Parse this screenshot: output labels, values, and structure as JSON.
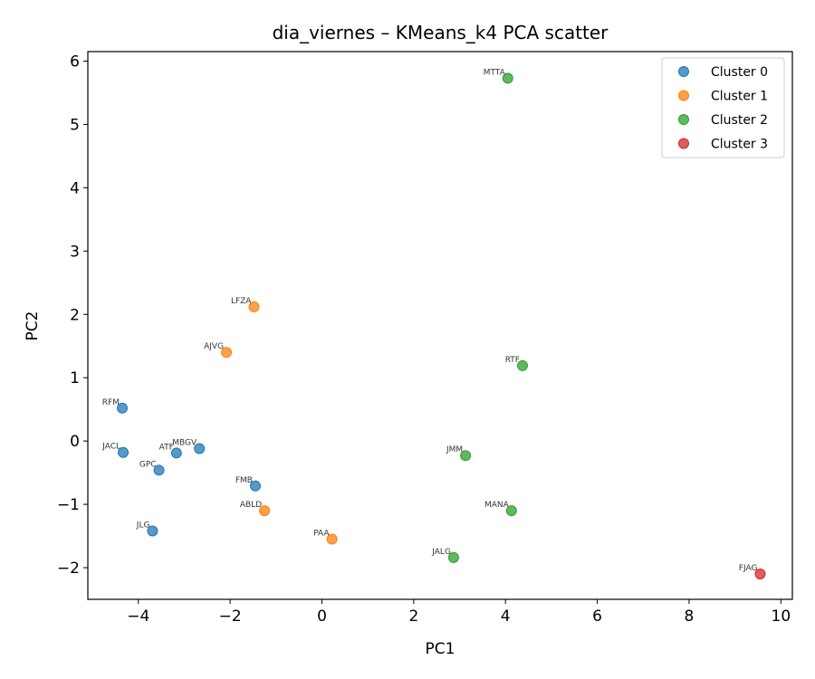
{
  "chart_data": {
    "type": "scatter",
    "title": "dia_viernes – KMeans_k4 PCA scatter",
    "xlabel": "PC1",
    "ylabel": "PC2",
    "xlim": [
      -5.1,
      10.25
    ],
    "ylim": [
      -2.5,
      6.15
    ],
    "xticks": [
      -4,
      -2,
      0,
      2,
      4,
      6,
      8,
      10
    ],
    "yticks": [
      -2,
      -1,
      0,
      1,
      2,
      3,
      4,
      5,
      6
    ],
    "legend_position": "top-right",
    "series": [
      {
        "name": "Cluster 0",
        "color": "#1f77b4",
        "points": [
          {
            "label": "RFM",
            "x": -4.35,
            "y": 0.52
          },
          {
            "label": "JACL",
            "x": -4.33,
            "y": -0.18
          },
          {
            "label": "ATF",
            "x": -3.17,
            "y": -0.19
          },
          {
            "label": "MBGV",
            "x": -2.67,
            "y": -0.12
          },
          {
            "label": "GPC",
            "x": -3.55,
            "y": -0.46
          },
          {
            "label": "FMB",
            "x": -1.45,
            "y": -0.71
          },
          {
            "label": "JLG",
            "x": -3.69,
            "y": -1.42
          }
        ]
      },
      {
        "name": "Cluster 1",
        "color": "#ff7f0e",
        "points": [
          {
            "label": "LFZA",
            "x": -1.48,
            "y": 2.12
          },
          {
            "label": "AJVG",
            "x": -2.08,
            "y": 1.4
          },
          {
            "label": "ABLD",
            "x": -1.25,
            "y": -1.1
          },
          {
            "label": "PAA",
            "x": 0.22,
            "y": -1.55
          }
        ]
      },
      {
        "name": "Cluster 2",
        "color": "#2ca02c",
        "points": [
          {
            "label": "MTTA",
            "x": 4.05,
            "y": 5.73
          },
          {
            "label": "RTF",
            "x": 4.37,
            "y": 1.19
          },
          {
            "label": "JMM",
            "x": 3.13,
            "y": -0.23
          },
          {
            "label": "MANA",
            "x": 4.13,
            "y": -1.1
          },
          {
            "label": "JALG",
            "x": 2.87,
            "y": -1.84
          }
        ]
      },
      {
        "name": "Cluster 3",
        "color": "#d62728",
        "points": [
          {
            "label": "FJAG",
            "x": 9.55,
            "y": -2.1
          }
        ]
      }
    ]
  }
}
